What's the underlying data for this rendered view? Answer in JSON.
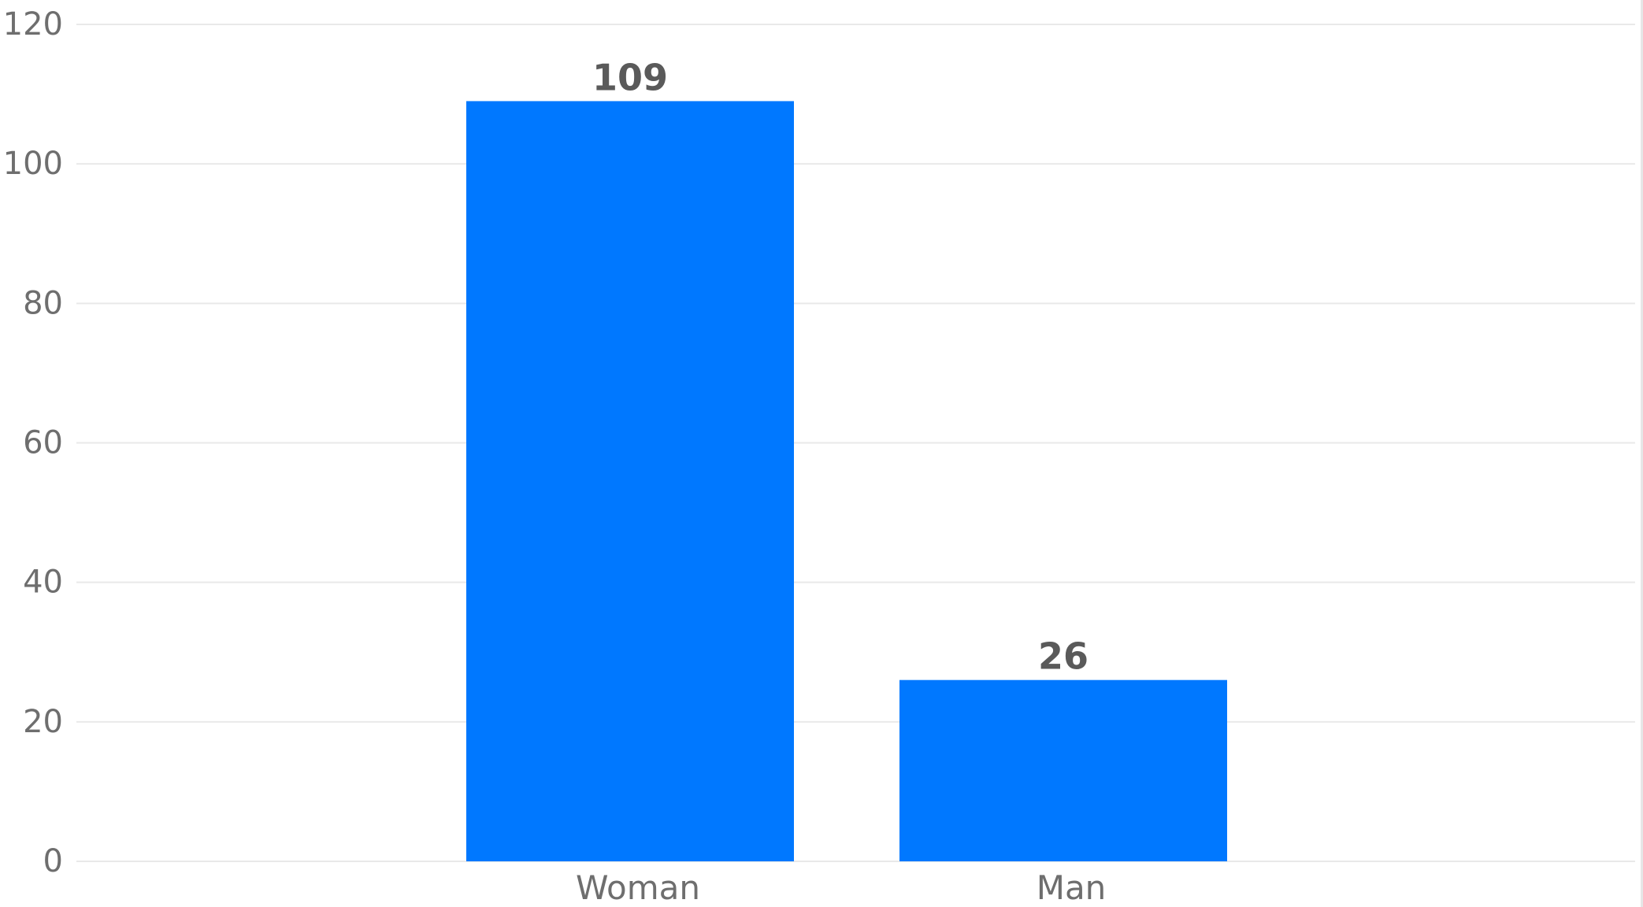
{
  "chart_data": {
    "type": "bar",
    "categories": [
      "Woman",
      "Man"
    ],
    "values": [
      109,
      26
    ],
    "data_labels": [
      "109",
      "26"
    ],
    "y_ticks": [
      "0",
      "20",
      "40",
      "60",
      "80",
      "100",
      "120"
    ],
    "ylim": [
      0,
      120
    ],
    "grid": true,
    "legend": "none",
    "colors": {
      "bar": "#0078ff",
      "grid": "#e9e9e9",
      "text": "#6e6e6e"
    }
  }
}
